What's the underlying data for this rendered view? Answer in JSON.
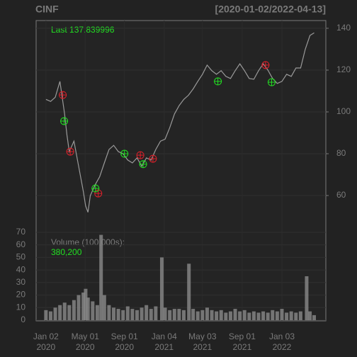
{
  "chart_data": [
    {
      "type": "line",
      "title": "CINF",
      "subtitle": "[2020-01-02/2022-04-13]",
      "last_label": "Last",
      "last_value": 137.839996,
      "x": [
        0,
        10,
        20,
        30,
        40,
        45,
        50,
        60,
        70,
        80,
        85,
        90,
        95,
        105,
        115,
        125,
        135,
        145,
        155,
        165,
        175,
        185,
        195,
        205,
        215,
        225,
        235,
        245,
        255,
        265,
        275,
        285,
        295,
        305,
        315,
        325,
        335,
        345,
        355,
        365,
        375,
        385,
        395,
        405,
        415,
        425,
        435,
        445,
        455,
        465,
        475,
        485,
        495,
        505,
        515,
        525,
        535,
        545,
        555,
        565,
        574
      ],
      "values": [
        106,
        105,
        107,
        114.6,
        99,
        89,
        81,
        86,
        74,
        62,
        55,
        52,
        60,
        65,
        69,
        75.6,
        82,
        84,
        81,
        80,
        77,
        75.6,
        78,
        74,
        78,
        77,
        82,
        86,
        87,
        92.5,
        99,
        103,
        106,
        108,
        111,
        114.6,
        118,
        122.4,
        119.7,
        118,
        119.7,
        117,
        116,
        119.7,
        123,
        119.7,
        116,
        115.6,
        119.7,
        123,
        120,
        116,
        113.6,
        114.6,
        118,
        117,
        121,
        121,
        130,
        136.6,
        137.8
      ],
      "color": "#9a9a9a",
      "series": [
        {
          "color": "#e0202a",
          "x": [
            36,
            52,
            112,
            202,
            229,
            470
          ],
          "values": [
            108.1,
            81,
            61,
            79.3,
            77.6,
            122.4
          ]
        },
        {
          "color": "#22e022",
          "x": [
            39,
            106,
            168,
            208,
            368,
            483
          ],
          "values": [
            95.6,
            63.4,
            80,
            75,
            114.6,
            114.2
          ]
        }
      ],
      "xlim": [
        -21,
        599
      ],
      "ylim": [
        42.4,
        143.7
      ],
      "yticks": [
        60,
        80,
        100,
        120,
        140
      ],
      "xticks": [
        {
          "value": 0,
          "label": "Jan 02\n2020"
        },
        {
          "value": 84,
          "label": "May 01\n2020"
        },
        {
          "value": 168,
          "label": "Sep 01\n2020"
        },
        {
          "value": 253,
          "label": "Jan 04\n2021"
        },
        {
          "value": 335,
          "label": "May 03\n2021"
        },
        {
          "value": 420,
          "label": "Sep 01\n2021"
        },
        {
          "value": 505,
          "label": "Jan 03\n2022"
        }
      ],
      "grid": true
    },
    {
      "type": "bar",
      "title": "Volume (100,000s):",
      "last_label": "380,200",
      "x": [
        0,
        10,
        20,
        30,
        40,
        50,
        60,
        70,
        80,
        85,
        90,
        100,
        110,
        118,
        125,
        135,
        145,
        155,
        165,
        175,
        185,
        195,
        205,
        215,
        225,
        235,
        248,
        255,
        265,
        275,
        285,
        295,
        306,
        315,
        325,
        335,
        345,
        355,
        365,
        375,
        385,
        395,
        405,
        415,
        425,
        435,
        445,
        455,
        465,
        475,
        485,
        495,
        505,
        515,
        525,
        535,
        545,
        558,
        565,
        574
      ],
      "values": [
        8,
        7,
        10,
        12,
        14,
        12,
        16,
        20,
        22,
        25,
        18,
        15,
        12,
        68,
        20,
        12,
        10,
        9,
        8,
        11,
        9,
        8,
        10,
        12,
        9,
        11,
        50,
        10,
        8,
        9,
        9,
        8,
        45,
        9,
        7,
        8,
        10,
        8,
        7,
        8,
        6,
        7,
        9,
        7,
        8,
        6,
        7,
        6,
        7,
        6,
        8,
        7,
        9,
        6,
        7,
        6,
        7,
        35,
        7,
        4
      ],
      "color": "#8a8a8a",
      "ylim": [
        0,
        70
      ],
      "yticks": [
        0,
        10,
        20,
        30,
        40,
        50,
        60,
        70
      ],
      "grid": true
    }
  ]
}
